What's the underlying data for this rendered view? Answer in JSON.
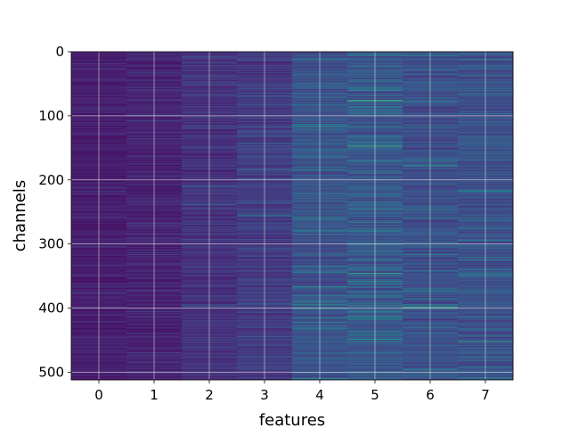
{
  "chart_data": {
    "type": "heatmap",
    "title": "",
    "xlabel": "features",
    "ylabel": "channels",
    "x_categories": [
      "0",
      "1",
      "2",
      "3",
      "4",
      "5",
      "6",
      "7"
    ],
    "x_tick_labels": [
      "0",
      "1",
      "2",
      "3",
      "4",
      "5",
      "6",
      "7"
    ],
    "y_tick_values": [
      0,
      100,
      200,
      300,
      400,
      500
    ],
    "y_tick_labels": [
      "0",
      "100",
      "200",
      "300",
      "400",
      "500"
    ],
    "ylim": [
      512,
      0
    ],
    "xlim": [
      -0.5,
      7.5
    ],
    "rows": 512,
    "columns": 8,
    "colormap": "viridis",
    "grid": true,
    "column_mean_intensity": [
      0.1,
      0.12,
      0.18,
      0.22,
      0.32,
      0.34,
      0.3,
      0.31
    ],
    "notable_bands": [
      {
        "column": 4,
        "row": 260,
        "intensity": 0.6
      },
      {
        "column": 4,
        "row": 478,
        "intensity": 0.55
      },
      {
        "column": 5,
        "row": 76,
        "intensity": 0.9
      },
      {
        "column": 5,
        "row": 147,
        "intensity": 0.85
      },
      {
        "column": 5,
        "row": 345,
        "intensity": 0.8
      },
      {
        "column": 5,
        "row": 448,
        "intensity": 0.75
      },
      {
        "column": 6,
        "row": 398,
        "intensity": 0.85
      },
      {
        "column": 7,
        "row": 452,
        "intensity": 0.8
      }
    ]
  },
  "colors": {
    "background": "#ffffff",
    "grid": "#e6e6e6",
    "axis": "#000000"
  }
}
